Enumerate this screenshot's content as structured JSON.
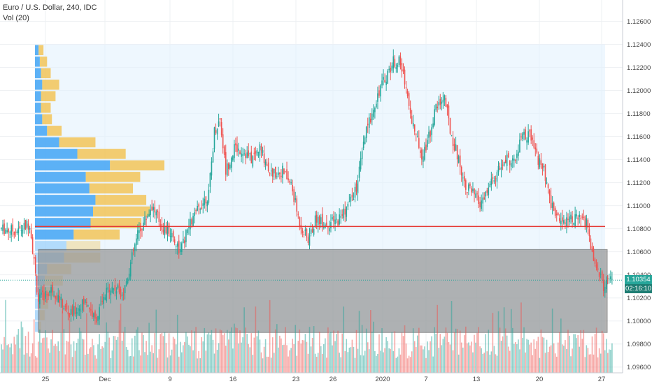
{
  "chart_data": {
    "type": "candlestick",
    "title": "Euro / U.S. Dollar, 240, IDC",
    "indicator_label": "Vol (20)",
    "ylim": [
      1.0955,
      1.127
    ],
    "y_ticks": [
      "1.12600",
      "1.12400",
      "1.12200",
      "1.12000",
      "1.11800",
      "1.11600",
      "1.11400",
      "1.11200",
      "1.11000",
      "1.10800",
      "1.10600",
      "1.10400",
      "1.10200",
      "1.10000",
      "1.09800",
      "1.09600"
    ],
    "x_ticks": [
      "25",
      "Dec",
      "9",
      "16",
      "23",
      "26",
      "2020",
      "7",
      "13",
      "20",
      "27"
    ],
    "last_price": "1.10354",
    "countdown": "02:16:10",
    "horizontal_line": 1.1082,
    "zone": {
      "from": 1.099,
      "to": 1.1062
    },
    "profile_range": {
      "from": 1.099,
      "to": 1.124
    },
    "colors": {
      "up": "#26a69a",
      "down": "#ef5350",
      "line": "#e53935",
      "zone": "#8c8c8c",
      "profile_up": "#42a5f5",
      "profile_down": "#f2c14e",
      "profile_area": "#e3f2fd"
    },
    "anchors": [
      [
        0,
        1.108
      ],
      [
        12,
        1.1078
      ],
      [
        20,
        1.1085
      ],
      [
        26,
        1.1018
      ],
      [
        36,
        1.1028
      ],
      [
        48,
        1.1005
      ],
      [
        60,
        1.1018
      ],
      [
        66,
        1.1
      ],
      [
        76,
        1.103
      ],
      [
        86,
        1.1025
      ],
      [
        96,
        1.1075
      ],
      [
        106,
        1.11
      ],
      [
        114,
        1.108
      ],
      [
        120,
        1.1075
      ],
      [
        126,
        1.106
      ],
      [
        132,
        1.1082
      ],
      [
        140,
        1.11
      ],
      [
        146,
        1.111
      ],
      [
        150,
        1.1165
      ],
      [
        154,
        1.1175
      ],
      [
        158,
        1.113
      ],
      [
        164,
        1.115
      ],
      [
        170,
        1.1148
      ],
      [
        176,
        1.114
      ],
      [
        182,
        1.115
      ],
      [
        190,
        1.1128
      ],
      [
        198,
        1.113
      ],
      [
        204,
        1.1118
      ],
      [
        210,
        1.1085
      ],
      [
        216,
        1.107
      ],
      [
        222,
        1.109
      ],
      [
        228,
        1.1084
      ],
      [
        236,
        1.1086
      ],
      [
        244,
        1.11
      ],
      [
        250,
        1.1115
      ],
      [
        256,
        1.116
      ],
      [
        262,
        1.1185
      ],
      [
        266,
        1.12
      ],
      [
        272,
        1.1215
      ],
      [
        276,
        1.1225
      ],
      [
        280,
        1.1225
      ],
      [
        284,
        1.121
      ],
      [
        288,
        1.118
      ],
      [
        292,
        1.116
      ],
      [
        296,
        1.1145
      ],
      [
        300,
        1.1155
      ],
      [
        306,
        1.1185
      ],
      [
        312,
        1.1195
      ],
      [
        316,
        1.1165
      ],
      [
        322,
        1.114
      ],
      [
        326,
        1.112
      ],
      [
        332,
        1.111
      ],
      [
        338,
        1.11
      ],
      [
        344,
        1.1118
      ],
      [
        350,
        1.113
      ],
      [
        356,
        1.114
      ],
      [
        362,
        1.1138
      ],
      [
        366,
        1.116
      ],
      [
        372,
        1.116
      ],
      [
        378,
        1.114
      ],
      [
        382,
        1.113
      ],
      [
        386,
        1.1105
      ],
      [
        392,
        1.1088
      ],
      [
        400,
        1.109
      ],
      [
        408,
        1.1088
      ],
      [
        412,
        1.1084
      ],
      [
        416,
        1.106
      ],
      [
        420,
        1.1045
      ],
      [
        424,
        1.103
      ],
      [
        430,
        1.1035
      ]
    ],
    "volume_ylim": [
      0,
      100
    ],
    "profile_rows": [
      {
        "up": 3,
        "down": 2
      },
      {
        "up": 4,
        "down": 4
      },
      {
        "up": 5,
        "down": 6
      },
      {
        "up": 6,
        "down": 10
      },
      {
        "up": 8,
        "down": 15
      },
      {
        "up": 10,
        "down": 20
      },
      {
        "up": 24,
        "down": 30
      },
      {
        "up": 26,
        "down": 28
      },
      {
        "up": 32,
        "down": 38
      },
      {
        "up": 46,
        "down": 42
      },
      {
        "up": 48,
        "down": 47
      },
      {
        "up": 50,
        "down": 42
      },
      {
        "up": 45,
        "down": 36
      },
      {
        "up": 42,
        "down": 45
      },
      {
        "up": 62,
        "down": 45
      },
      {
        "up": 35,
        "down": 40
      },
      {
        "up": 20,
        "down": 30
      },
      {
        "up": 10,
        "down": 12
      },
      {
        "up": 6,
        "down": 8
      },
      {
        "up": 5,
        "down": 8
      },
      {
        "up": 5,
        "down": 12
      },
      {
        "up": 6,
        "down": 14
      },
      {
        "up": 5,
        "down": 8
      },
      {
        "up": 4,
        "down": 6
      },
      {
        "up": 3,
        "down": 4
      }
    ]
  }
}
